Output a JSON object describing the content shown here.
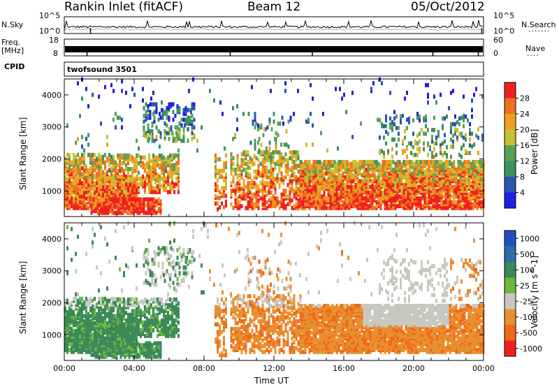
{
  "header": {
    "station": "Rankin Inlet (fitACF)",
    "beam": "Beam 12",
    "date": "05/Oct/2012"
  },
  "colors": {
    "power_scale": [
      "#2020e0",
      "#2a56b0",
      "#3c9060",
      "#5aa058",
      "#c8c030",
      "#f0a020",
      "#f07020",
      "#f02020"
    ],
    "velocity_scale": [
      "#2050c0",
      "#306aa8",
      "#3c8a5a",
      "#70b840",
      "#c8c8c0",
      "#e89030",
      "#f06818",
      "#f02020"
    ]
  },
  "chart_data": [
    {
      "type": "line",
      "panel": "N.Sky / N.Search",
      "left_label": "N.Sky",
      "right_label": "N.Search",
      "left_ticks": [
        "10^5",
        "10^0"
      ],
      "right_ticks": [
        "10^5",
        "10^0"
      ],
      "note": "Noise levels, log scale 10^0 to 10^5"
    },
    {
      "type": "line",
      "panel": "Freq / Nave",
      "left_label": "Freq.",
      "left_unit": "[MHz]",
      "right_label": "Nave",
      "left_ticks": [
        "18",
        "8"
      ],
      "right_ticks": [
        "60",
        "0"
      ]
    },
    {
      "type": "table",
      "panel": "CPID",
      "label": "CPID",
      "value": "twofsound 3501"
    },
    {
      "type": "heatmap",
      "panel": "power",
      "ylabel": "Slant Range [km]",
      "ylim": [
        200,
        4500
      ],
      "yticks": [
        1000,
        2000,
        3000,
        4000
      ],
      "xlim": [
        0,
        24
      ],
      "colorbar_label": "Power [dB]",
      "colorbar_ticks": [
        "4",
        "8",
        "12",
        "16",
        "20",
        "24",
        "28"
      ],
      "clim": [
        0,
        32
      ]
    },
    {
      "type": "heatmap",
      "panel": "velocity",
      "ylabel": "Slant Range [km]",
      "ylim": [
        200,
        4500
      ],
      "yticks": [
        1000,
        2000,
        3000,
        4000
      ],
      "xlim": [
        0,
        24
      ],
      "xticks": [
        "00:00",
        "04:00",
        "08:00",
        "12:00",
        "16:00",
        "20:00",
        "00:00"
      ],
      "xlabel": "Time UT",
      "colorbar_label": "Velocity [m s^-1]",
      "colorbar_ticks": [
        "1000",
        "500",
        "100",
        "25",
        "-25",
        "-100",
        "-500",
        "-1000"
      ]
    }
  ]
}
